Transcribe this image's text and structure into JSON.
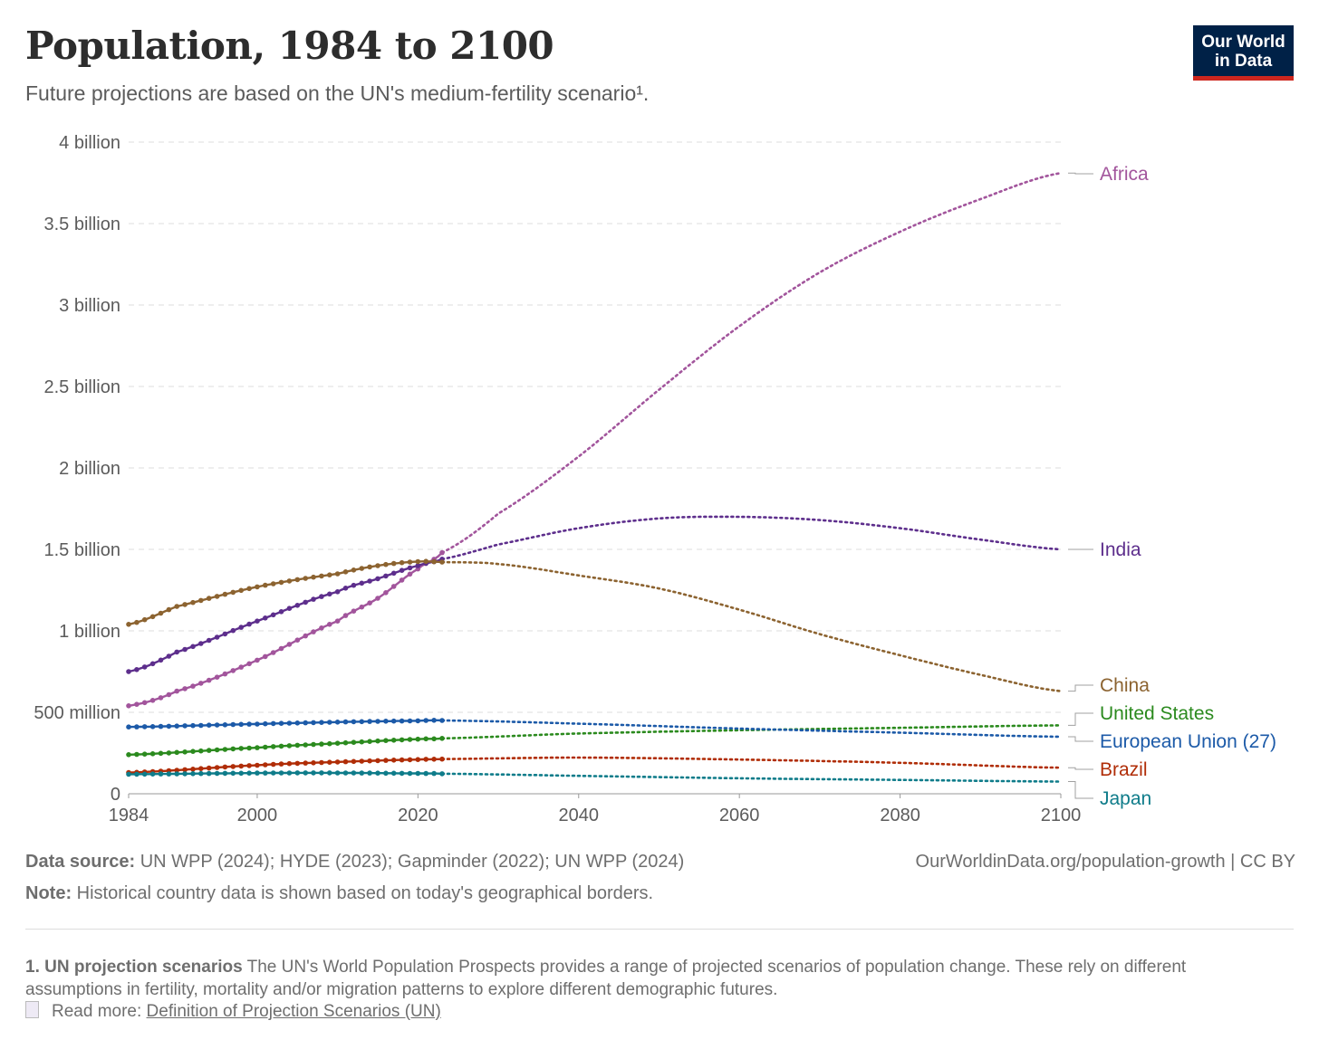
{
  "header": {
    "title": "Population, 1984 to 2100",
    "subtitle": "Future projections are based on the UN's medium-fertility scenario¹.",
    "logo_line1": "Our World",
    "logo_line2": "in Data"
  },
  "footer": {
    "source_label": "Data source:",
    "source_text": " UN WPP (2024); HYDE (2023); Gapminder (2022); UN WPP (2024)",
    "url": "OurWorldinData.org/population-growth | CC BY",
    "note_label": "Note:",
    "note_text": " Historical country data is shown based on today's geographical borders.",
    "footnote_label": "1. UN projection scenarios",
    "footnote_text": " The UN's World Population Prospects provides a range of projected scenarios of population change. These rely on different assumptions in fertility, mortality and/or migration patterns to explore different demographic futures.",
    "readmore_label": "Read more: ",
    "readmore_link": "Definition of Projection Scenarios (UN)"
  },
  "chart_data": {
    "type": "line",
    "title": "Population, 1984 to 2100",
    "xlim": [
      1984,
      2100
    ],
    "ylim": [
      0,
      4000000000
    ],
    "x_ticks": [
      1984,
      2000,
      2020,
      2040,
      2060,
      2080,
      2100
    ],
    "y_ticks": [
      {
        "value": 0,
        "label": "0"
      },
      {
        "value": 500000000,
        "label": "500 million"
      },
      {
        "value": 1000000000,
        "label": "1 billion"
      },
      {
        "value": 1500000000,
        "label": "1.5 billion"
      },
      {
        "value": 2000000000,
        "label": "2 billion"
      },
      {
        "value": 2500000000,
        "label": "2.5 billion"
      },
      {
        "value": 3000000000,
        "label": "3 billion"
      },
      {
        "value": 3500000000,
        "label": "3.5 billion"
      },
      {
        "value": 4000000000,
        "label": "4 billion"
      }
    ],
    "grid": "horizontal-dashed",
    "historical_end": 2023,
    "series": [
      {
        "name": "Africa",
        "color": "#a2559c",
        "x": [
          1984,
          1990,
          2000,
          2010,
          2015,
          2020,
          2023,
          2030,
          2040,
          2050,
          2060,
          2070,
          2080,
          2090,
          2100
        ],
        "y": [
          540000000,
          630000000,
          820000000,
          1060000000,
          1200000000,
          1380000000,
          1480000000,
          1720000000,
          2070000000,
          2480000000,
          2870000000,
          3200000000,
          3450000000,
          3650000000,
          3810000000
        ]
      },
      {
        "name": "India",
        "color": "#5d2e8c",
        "x": [
          1984,
          1990,
          2000,
          2010,
          2015,
          2020,
          2023,
          2030,
          2040,
          2050,
          2060,
          2070,
          2080,
          2090,
          2100
        ],
        "y": [
          750000000,
          870000000,
          1060000000,
          1240000000,
          1320000000,
          1400000000,
          1440000000,
          1530000000,
          1630000000,
          1690000000,
          1700000000,
          1680000000,
          1630000000,
          1560000000,
          1500000000
        ]
      },
      {
        "name": "China",
        "color": "#8c6330",
        "x": [
          1984,
          1990,
          2000,
          2010,
          2015,
          2020,
          2023,
          2030,
          2040,
          2050,
          2060,
          2070,
          2080,
          2090,
          2100
        ],
        "y": [
          1040000000,
          1150000000,
          1270000000,
          1350000000,
          1400000000,
          1425000000,
          1422000000,
          1410000000,
          1340000000,
          1260000000,
          1130000000,
          980000000,
          850000000,
          730000000,
          630000000
        ]
      },
      {
        "name": "United States",
        "color": "#2b8a1e",
        "x": [
          1984,
          2000,
          2010,
          2020,
          2023,
          2040,
          2060,
          2080,
          2100
        ],
        "y": [
          240000000,
          283000000,
          310000000,
          335000000,
          340000000,
          370000000,
          390000000,
          405000000,
          420000000
        ]
      },
      {
        "name": "European Union (27)",
        "color": "#1c5aa8",
        "x": [
          1984,
          2000,
          2010,
          2020,
          2023,
          2040,
          2060,
          2080,
          2100
        ],
        "y": [
          410000000,
          428000000,
          440000000,
          448000000,
          450000000,
          430000000,
          400000000,
          375000000,
          350000000
        ]
      },
      {
        "name": "Brazil",
        "color": "#b02d07",
        "x": [
          1984,
          2000,
          2010,
          2020,
          2023,
          2040,
          2060,
          2080,
          2100
        ],
        "y": [
          130000000,
          175000000,
          195000000,
          210000000,
          213000000,
          222000000,
          210000000,
          190000000,
          160000000
        ]
      },
      {
        "name": "Japan",
        "color": "#0f7c8a",
        "x": [
          1984,
          2000,
          2010,
          2020,
          2023,
          2040,
          2060,
          2080,
          2100
        ],
        "y": [
          120000000,
          127000000,
          128000000,
          125000000,
          123000000,
          110000000,
          95000000,
          85000000,
          75000000
        ]
      }
    ]
  }
}
